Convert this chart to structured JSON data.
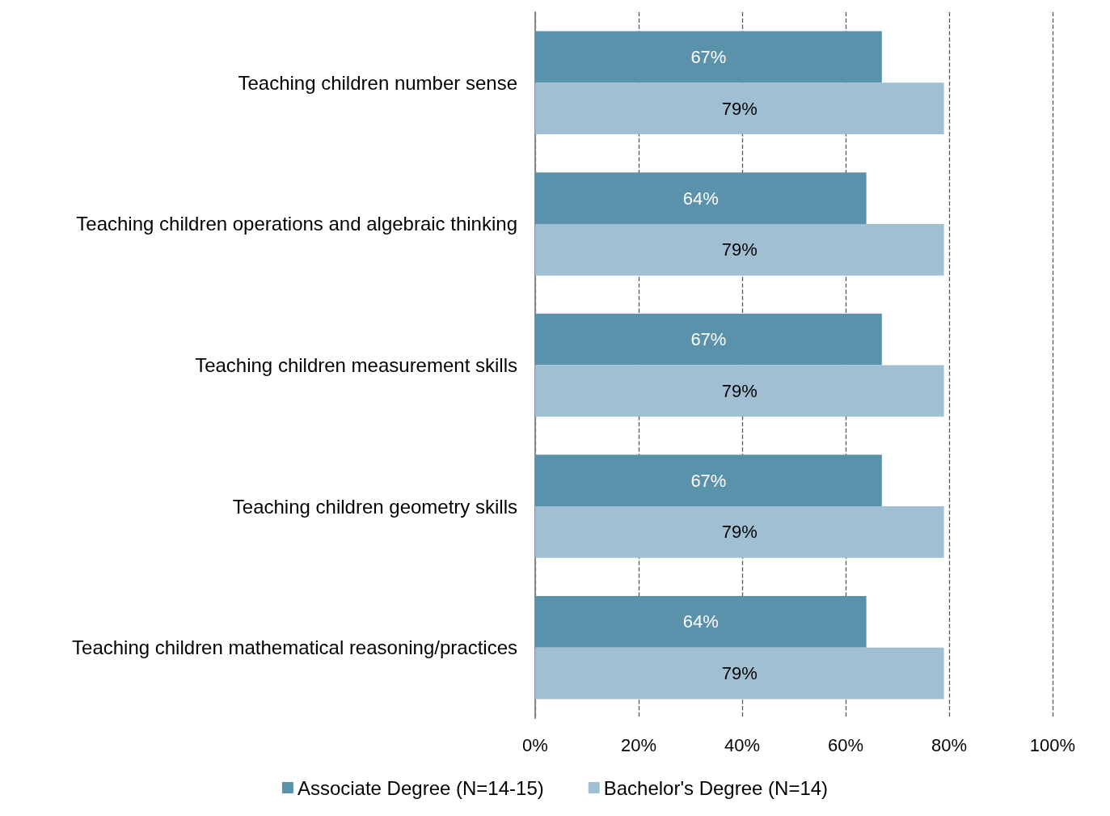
{
  "chart_data": {
    "type": "bar",
    "orientation": "horizontal",
    "categories": [
      "Teaching children number sense",
      "Teaching children operations and algebraic thinking",
      "Teaching children measurement skills",
      "Teaching children geometry skills",
      "Teaching children mathematical reasoning/practices"
    ],
    "series": [
      {
        "name": "Associate Degree (N=14-15)",
        "color": "#5b92ab",
        "values": [
          67,
          64,
          67,
          67,
          64
        ],
        "value_labels": [
          "67%",
          "64%",
          "67%",
          "67%",
          "64%"
        ]
      },
      {
        "name": "Bachelor's Degree (N=14)",
        "color": "#a0bfd2",
        "values": [
          79,
          79,
          79,
          79,
          79
        ],
        "value_labels": [
          "79%",
          "79%",
          "79%",
          "79%",
          "79%"
        ]
      }
    ],
    "xlim": [
      0,
      100
    ],
    "xticks": [
      {
        "value": 0,
        "label": "0%"
      },
      {
        "value": 20,
        "label": "20%"
      },
      {
        "value": 40,
        "label": "40%"
      },
      {
        "value": 60,
        "label": "60%"
      },
      {
        "value": 80,
        "label": "80%"
      },
      {
        "value": 100,
        "label": "100%"
      }
    ],
    "grid": "x",
    "legend": "bottom"
  }
}
